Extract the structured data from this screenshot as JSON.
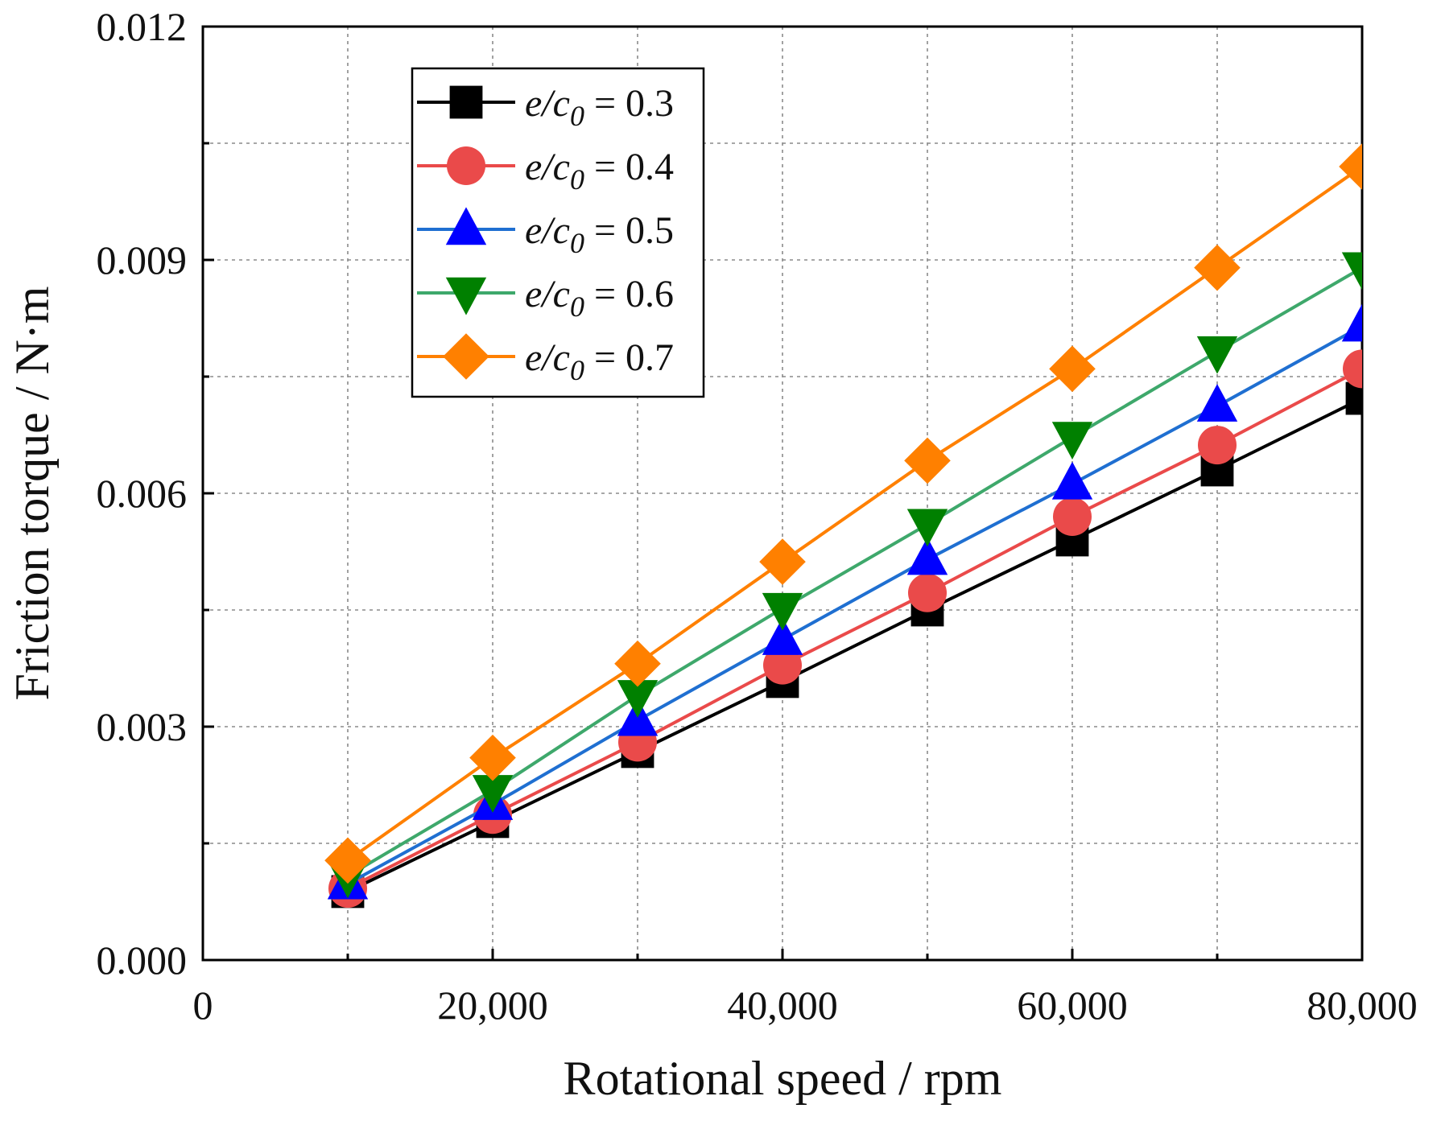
{
  "chart_data": {
    "type": "line",
    "title": "",
    "xlabel": "Rotational speed / rpm",
    "ylabel": "Friction torque / N·m",
    "xlim": [
      0,
      80000
    ],
    "ylim": [
      0,
      0.012
    ],
    "x_ticks": [
      "0",
      "20,000",
      "40,000",
      "60,000",
      "80,000"
    ],
    "x_tick_values": [
      0,
      20000,
      40000,
      60000,
      80000
    ],
    "y_ticks": [
      "0.000",
      "0.003",
      "0.006",
      "0.009",
      "0.012"
    ],
    "y_tick_values": [
      0,
      0.003,
      0.006,
      0.009,
      0.012
    ],
    "grid": true,
    "legend_position": "top-left",
    "x": [
      10000,
      20000,
      30000,
      40000,
      50000,
      60000,
      70000,
      80000
    ],
    "series": [
      {
        "name": "e/c0 = 0.3",
        "legend_parts": [
          "e/c",
          "0",
          " = 0.3"
        ],
        "color": "#000000",
        "marker": "square",
        "values": [
          0.00088,
          0.00178,
          0.00268,
          0.00358,
          0.0045,
          0.0054,
          0.0063,
          0.00722
        ]
      },
      {
        "name": "e/c0 = 0.4",
        "legend_parts": [
          "e/c",
          "0",
          " = 0.4"
        ],
        "color": "#ea4a4a",
        "marker": "circle",
        "values": [
          0.00092,
          0.00187,
          0.0028,
          0.00379,
          0.00472,
          0.0057,
          0.00662,
          0.0076
        ]
      },
      {
        "name": "e/c0 = 0.5",
        "legend_parts": [
          "e/c",
          "0",
          " = 0.5"
        ],
        "color": "#0000ff",
        "marker": "triangle-up",
        "values": [
          0.00098,
          0.002,
          0.00308,
          0.00412,
          0.00515,
          0.00612,
          0.00712,
          0.00815
        ]
      },
      {
        "name": "e/c0 = 0.6",
        "legend_parts": [
          "e/c",
          "0",
          " = 0.6"
        ],
        "color": "#008000",
        "marker": "triangle-down",
        "values": [
          0.00108,
          0.00218,
          0.0034,
          0.00452,
          0.0056,
          0.00672,
          0.00782,
          0.0089
        ]
      },
      {
        "name": "e/c0 = 0.7",
        "legend_parts": [
          "e/c",
          "0",
          " = 0.7"
        ],
        "color": "#ff8000",
        "marker": "diamond",
        "values": [
          0.00128,
          0.0026,
          0.00381,
          0.00512,
          0.00642,
          0.0076,
          0.0089,
          0.0102
        ]
      }
    ]
  },
  "colors": {
    "series_line_03": "#000000",
    "series_line_04": "#ea4a4a",
    "series_line_05": "#1f6fd1",
    "series_line_06": "#3ea86b",
    "series_line_07": "#ff8000"
  }
}
